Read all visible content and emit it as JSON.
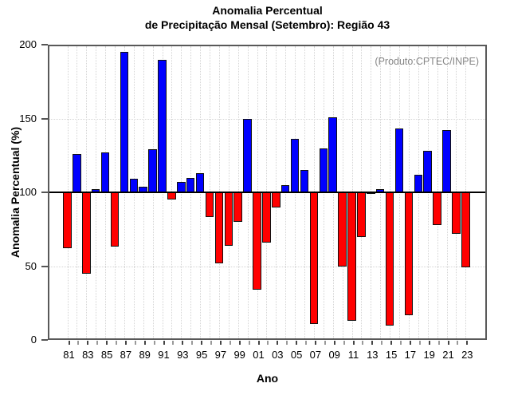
{
  "chart_data": {
    "type": "bar",
    "title_line1": "Anomalia Percentual",
    "title_line2": "de Precipitação Mensal (Setembro): Região 43",
    "annotation": "(Produto:CPTEC/INPE)",
    "xlabel": "Ano",
    "ylabel": "Anomalia Percentual (%)",
    "ylim": [
      0,
      200
    ],
    "yticks": [
      0,
      50,
      100,
      150,
      200
    ],
    "hgrid_values": [
      50,
      150
    ],
    "baseline": 100,
    "x_label_every": 2,
    "colors": {
      "above_baseline": "#0000FF",
      "below_baseline": "#FF0000",
      "bar_outline": "#111111",
      "annotation_text": "#878787"
    },
    "categories": [
      "81",
      "82",
      "83",
      "84",
      "85",
      "86",
      "87",
      "88",
      "89",
      "90",
      "91",
      "92",
      "93",
      "94",
      "95",
      "96",
      "97",
      "98",
      "99",
      "00",
      "01",
      "02",
      "03",
      "04",
      "05",
      "06",
      "07",
      "08",
      "09",
      "10",
      "11",
      "12",
      "13",
      "14",
      "15",
      "16",
      "17",
      "18",
      "19",
      "20",
      "21",
      "22",
      "23"
    ],
    "values": [
      62,
      126,
      45,
      102,
      127,
      63,
      195,
      109,
      104,
      129,
      190,
      95,
      107,
      110,
      113,
      83,
      52,
      64,
      80,
      150,
      34,
      66,
      90,
      105,
      136,
      115,
      11,
      130,
      151,
      50,
      13,
      70,
      99,
      102,
      10,
      143,
      17,
      112,
      128,
      78,
      142,
      72,
      49
    ]
  }
}
